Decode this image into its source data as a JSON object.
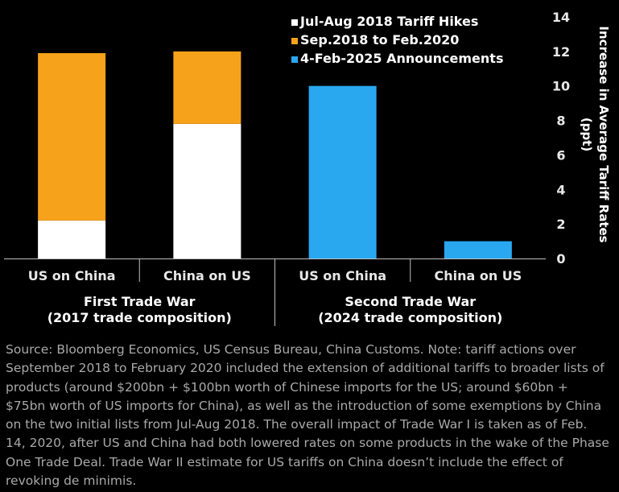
{
  "chart_data": {
    "type": "bar",
    "stacked": true,
    "categories": [
      "US on China",
      "China on US",
      "US on China",
      "China on US"
    ],
    "groups": [
      {
        "lines": [
          "First Trade War",
          "(2017 trade composition)"
        ]
      },
      {
        "lines": [
          "Second Trade War",
          "(2024 trade composition)"
        ]
      }
    ],
    "series": [
      {
        "name": "Jul-Aug 2018 Tariff Hikes",
        "color": "#ffffff",
        "values": [
          2.2,
          7.8,
          0,
          0
        ]
      },
      {
        "name": "Sep.2018 to Feb.2020",
        "color": "#f7a21b",
        "values": [
          9.7,
          4.2,
          0,
          0
        ]
      },
      {
        "name": "4-Feb-2025 Announcements",
        "color": "#29a8f0",
        "values": [
          0,
          0,
          10,
          1
        ]
      }
    ],
    "ylabel_lines": [
      "Increase in Average Tariff Rates",
      "(ppt)"
    ],
    "ylim": [
      0,
      14
    ],
    "yticks": [
      0,
      2,
      4,
      6,
      8,
      10,
      12,
      14
    ],
    "y_axis_side": "right",
    "grid": false,
    "legend_position": "top-right"
  },
  "source_note": "Source: Bloomberg Economics, US Census Bureau, China Customs. Note: tariff actions over September 2018 to February 2020 included the extension of additional tariffs to broader lists of products (around $200bn + $100bn worth of Chinese imports for the US; around $60bn + $75bn worth of US imports for China), as well as the introduction of some exemptions by China on the two initial lists from Jul-Aug 2018. The overall impact of Trade War I is taken as of Feb. 14, 2020, after US and China had both lowered rates on some products in the wake of the Phase One Trade Deal. Trade War II estimate for US tariffs on China doesn’t include the effect of revoking de minimis."
}
